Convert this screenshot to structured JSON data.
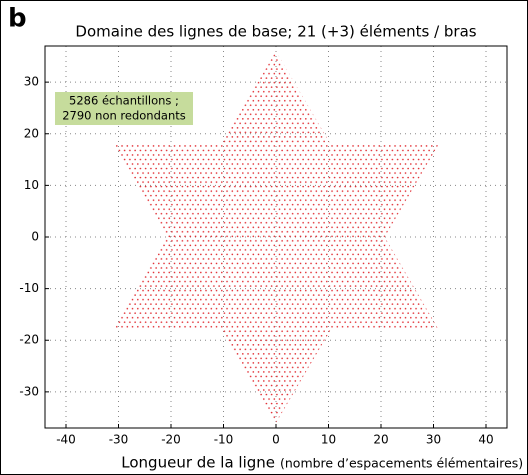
{
  "panel_label": "b",
  "chart_data": {
    "type": "polygon",
    "title": "Domaine des lignes de base; 21 (+3) éléments / bras",
    "xlabel": "Longueur de la ligne",
    "xlabel_note": "(nombre d’espacements élémentaires)",
    "annotation": [
      "5286 échantillons ;",
      "2790 non redondants"
    ],
    "x": [
      0,
      10.4,
      31,
      20.7,
      31,
      10.4,
      0,
      -10.4,
      -31,
      -20.7,
      -31,
      -10.4
    ],
    "y": [
      36,
      18,
      18,
      0,
      -18,
      -18,
      -36,
      -18,
      -18,
      0,
      18,
      18
    ],
    "color": "#e0242a",
    "xlim": [
      -44,
      44
    ],
    "xticks": [
      -40,
      -30,
      -20,
      -10,
      0,
      10,
      20,
      30,
      40
    ],
    "ylim": [
      -37,
      37
    ],
    "yticks": [
      -30,
      -20,
      -10,
      0,
      10,
      20,
      30
    ],
    "grid": true
  }
}
